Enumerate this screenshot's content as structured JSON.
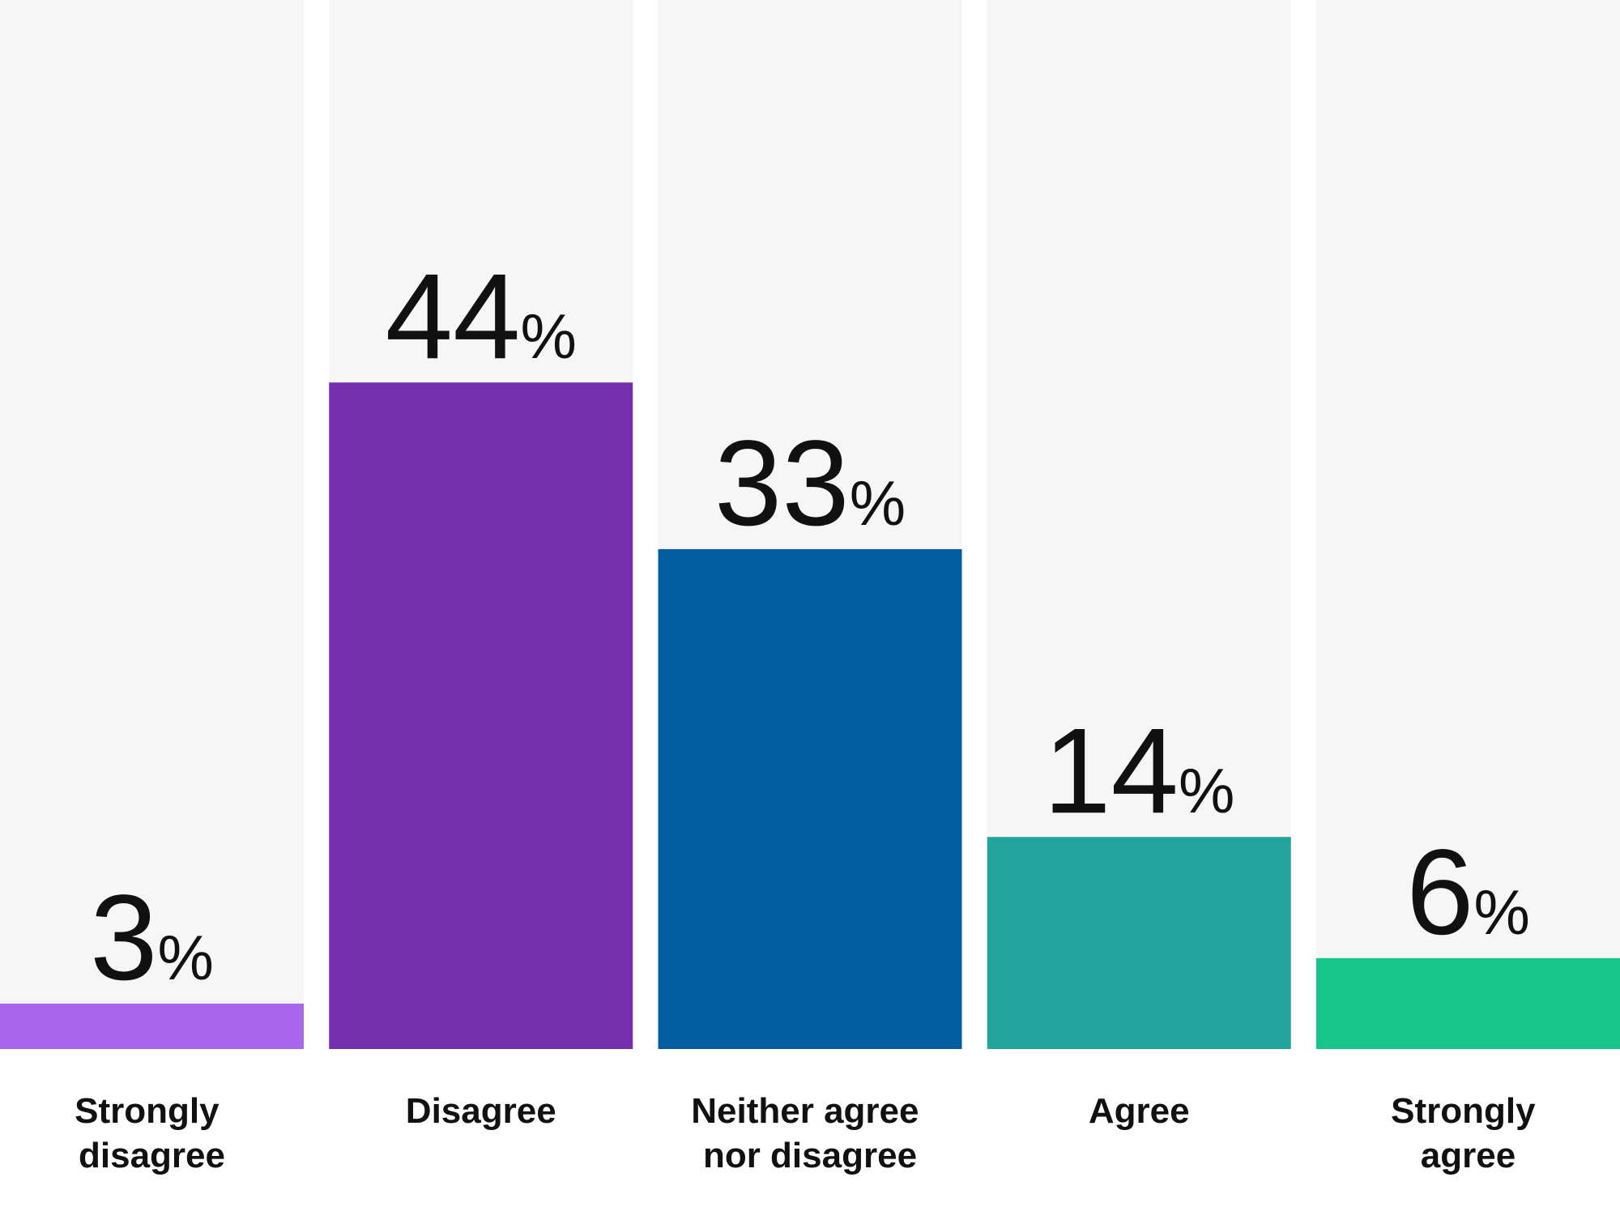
{
  "chart_data": {
    "type": "bar",
    "categories": [
      "Strongly disagree",
      "Disagree",
      "Neither agree nor disagree",
      "Agree",
      "Strongly agree"
    ],
    "values": [
      3,
      44,
      33,
      14,
      6
    ],
    "value_labels": [
      "3%",
      "44%",
      "33%",
      "14%",
      "6%"
    ],
    "colors": [
      "#a865ee",
      "#742fac",
      "#035c9e",
      "#22a39b",
      "#17c48a"
    ]
  }
}
